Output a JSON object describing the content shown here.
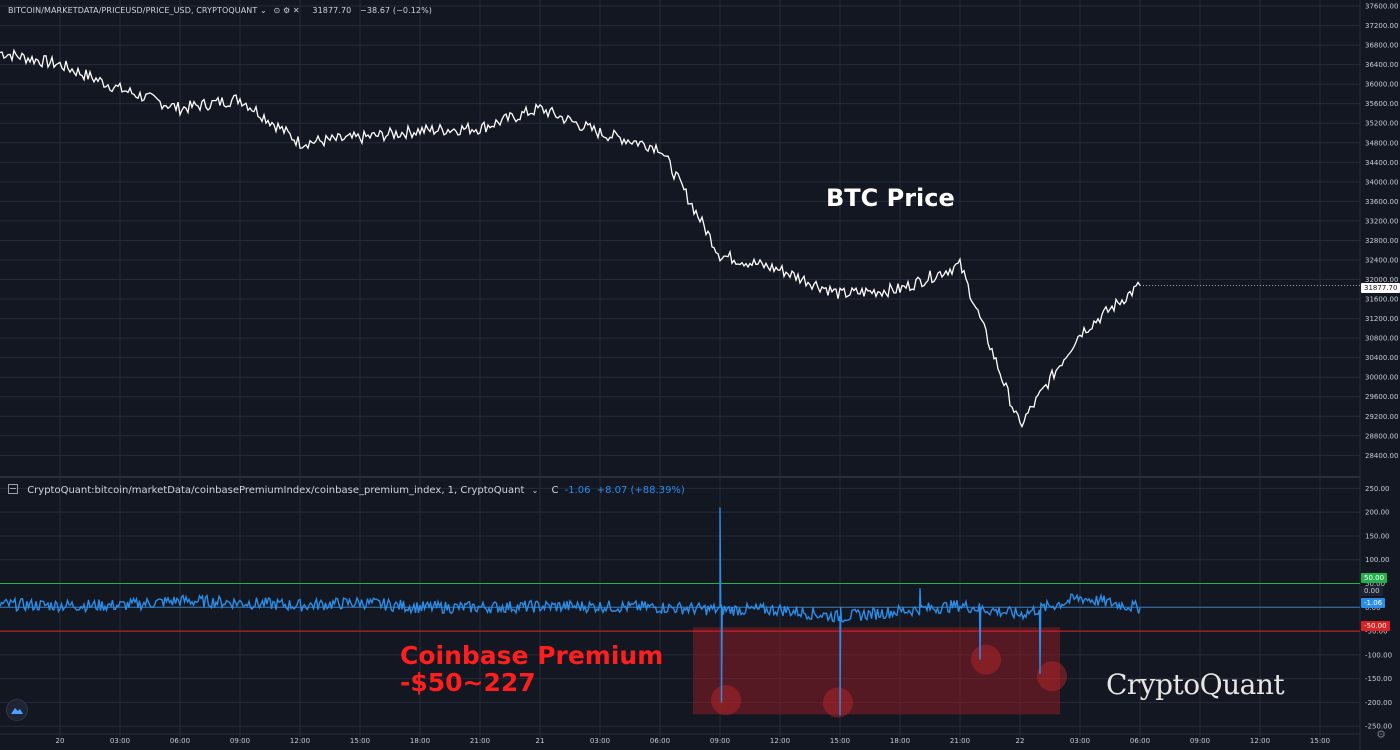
{
  "header": {
    "symbol": "BITCOIN/MARKETDATA/PRICEUSD/PRICE_USD, CRYPTOQUANT",
    "chevron": "⌄",
    "icons": [
      "eye-icon",
      "gear-icon",
      "close-icon"
    ],
    "price": "31877.70",
    "change": "−38.67 (−0.12%)"
  },
  "indicator": {
    "title": "CryptoQuant:bitcoin/marketData/coinbasePremiumIndex/coinbase_premium_index, 1, CryptoQuant",
    "chevron": "⌄",
    "c_label": "C",
    "c_value": "-1.06",
    "change": "+8.07 (+88.39%)"
  },
  "annotations": {
    "btc_label": "BTC Price",
    "premium_line1": "Coinbase Premium",
    "premium_line2": "-$50~227",
    "watermark": "CryptoQuant"
  },
  "badges": {
    "price": "31877.70",
    "upper": "50.00",
    "zero": "0.00",
    "current": "-1.06",
    "lower": "-50.00"
  },
  "colors": {
    "background": "#131722",
    "price_line": "#ffffff",
    "premium_line": "#2b8de8",
    "upper_line": "#22b14c",
    "lower_line": "#e02020",
    "zero_line": "#3d8ed6",
    "highlight": "#8a1c22"
  },
  "chart_data": [
    {
      "type": "line",
      "series": [
        {
          "x": [
            "19 21:00",
            "20 00:00",
            "20 03:00",
            "20 06:00",
            "20 09:00",
            "20 12:00",
            "20 15:00",
            "20 18:00",
            "20 21:00",
            "21 00:00",
            "21 03:00",
            "21 06:00",
            "21 09:00",
            "21 12:00",
            "21 15:00",
            "21 18:00",
            "21 21:00",
            "22 00:00",
            "22 03:00",
            "22 06:00"
          ],
          "values": [
            36650,
            36400,
            35900,
            35500,
            35700,
            34800,
            34900,
            35050,
            35100,
            35500,
            35000,
            34700,
            32500,
            32200,
            31700,
            31800,
            32300,
            29000,
            30900,
            31877.7
          ]
        }
      ],
      "ylim": [
        28100,
        37600
      ],
      "y_ticks": [
        "28400.00",
        "28800.00",
        "29200.00",
        "29600.00",
        "30000.00",
        "30400.00",
        "30800.00",
        "31200.00",
        "31600.00",
        "32000.00",
        "32400.00",
        "32800.00",
        "33200.00",
        "33600.00",
        "34000.00",
        "34400.00",
        "34800.00",
        "35200.00",
        "35600.00",
        "36000.00",
        "36400.00",
        "36800.00",
        "37200.00",
        "37600.00"
      ],
      "last_value": 31877.7
    },
    {
      "type": "line",
      "series": [
        {
          "x": [
            "19 21:00",
            "20 00:00",
            "20 03:00",
            "20 06:00",
            "20 09:00",
            "20 12:00",
            "20 15:00",
            "20 18:00",
            "20 21:00",
            "21 00:00",
            "21 03:00",
            "21 06:00",
            "21 09:00",
            "21 12:00",
            "21 15:00",
            "21 18:00",
            "21 21:00",
            "22 00:00",
            "22 03:00",
            "22 06:00"
          ],
          "values": [
            6,
            4,
            4,
            14,
            10,
            4,
            10,
            0,
            0,
            2,
            2,
            0,
            -5,
            -5,
            -20,
            -8,
            4,
            -15,
            20,
            -1.06
          ]
        }
      ],
      "spikes": [
        {
          "x": "21 09:00",
          "values": [
            210,
            -200
          ]
        },
        {
          "x": "21 15:00",
          "values": [
            -227
          ]
        },
        {
          "x": "21 19:00",
          "values": [
            40
          ]
        },
        {
          "x": "21 22:00",
          "values": [
            -110
          ]
        },
        {
          "x": "22 01:00",
          "values": [
            -140
          ]
        }
      ],
      "ylim": [
        -260,
        255
      ],
      "y_ticks": [
        "250.00",
        "200.00",
        "150.00",
        "100.00",
        "50.00",
        "0.00",
        "-50.00",
        "-100.00",
        "-150.00",
        "-200.00",
        "-250.00"
      ],
      "reference_lines": [
        50,
        0,
        -50
      ],
      "last_value": -1.06
    }
  ],
  "x_axis": {
    "labels": [
      "20",
      "03:00",
      "06:00",
      "09:00",
      "12:00",
      "15:00",
      "18:00",
      "21:00",
      "21",
      "03:00",
      "06:00",
      "09:00",
      "12:00",
      "15:00",
      "18:00",
      "21:00",
      "22",
      "03:00",
      "06:00",
      "09:00",
      "12:00",
      "15:00"
    ]
  }
}
